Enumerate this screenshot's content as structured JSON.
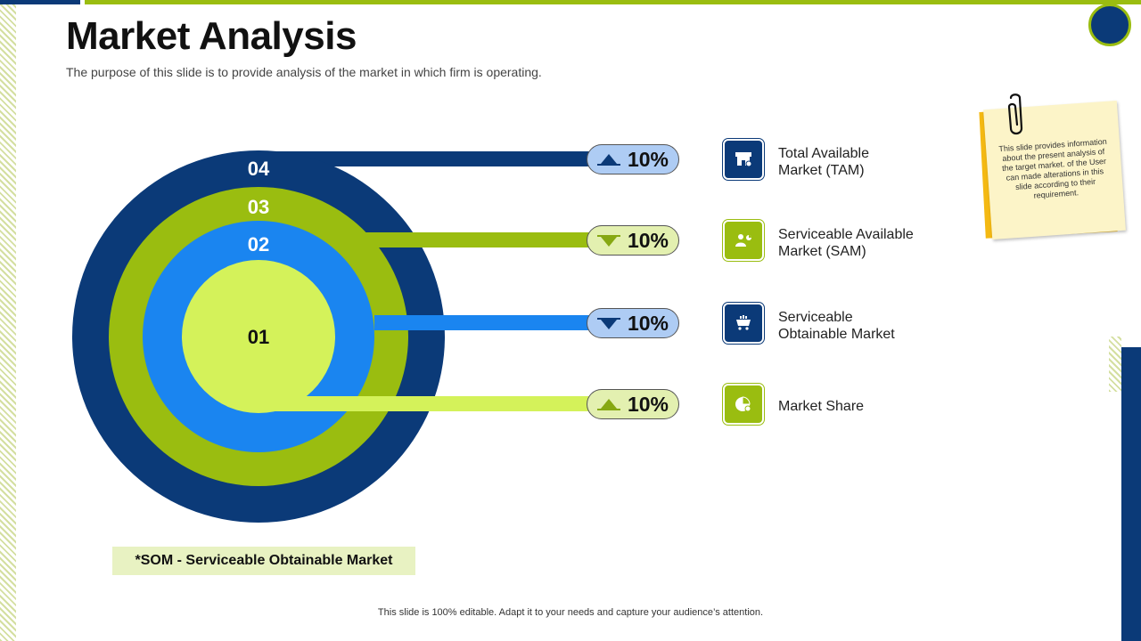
{
  "title": "Market Analysis",
  "subtitle": "The purpose of this slide is to provide analysis of the market in which firm is operating.",
  "rings": [
    {
      "number": "04",
      "color": "#0b3a78"
    },
    {
      "number": "03",
      "color": "#9abd10"
    },
    {
      "number": "02",
      "color": "#1a85f0"
    },
    {
      "number": "01",
      "color": "#d4f25a"
    }
  ],
  "metrics": [
    {
      "value": "10%",
      "trend": "up",
      "label_line1": "Total Available",
      "label_line2": "Market (TAM)",
      "icon": "storefront-icon"
    },
    {
      "value": "10%",
      "trend": "down",
      "label_line1": "Serviceable Available",
      "label_line2": "Market (SAM)",
      "icon": "user-chart-icon"
    },
    {
      "value": "10%",
      "trend": "down",
      "label_line1": "Serviceable",
      "label_line2": "Obtainable Market",
      "icon": "shopping-cart-icon"
    },
    {
      "value": "10%",
      "trend": "up",
      "label_line1": "Market Share",
      "label_line2": "",
      "icon": "pie-chart-icon"
    }
  ],
  "note": "This slide provides information about the present analysis of the target market. of the User can made alterations in this slide according to their requirement.",
  "legend": "*SOM - Serviceable Obtainable Market",
  "footer": "This slide is 100% editable. Adapt it to your needs and capture your audience’s attention.",
  "colors": {
    "navy": "#0b3a78",
    "green": "#9abd10",
    "blue": "#1a85f0",
    "lime": "#d4f25a"
  }
}
